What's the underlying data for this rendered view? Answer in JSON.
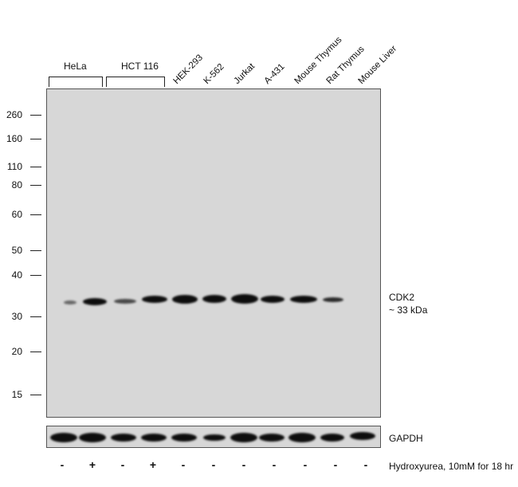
{
  "groups": [
    {
      "label": "HeLa"
    },
    {
      "label": "HCT 116"
    }
  ],
  "lanes": [
    {
      "label": "HEK-293"
    },
    {
      "label": "K-562"
    },
    {
      "label": "Jurkat"
    },
    {
      "label": "A-431"
    },
    {
      "label": "Mouse Thymus"
    },
    {
      "label": "Rat Thymus"
    },
    {
      "label": "Mouse Liver"
    }
  ],
  "mw_markers": [
    "260",
    "160",
    "110",
    "80",
    "60",
    "50",
    "40",
    "30",
    "20",
    "15"
  ],
  "target": {
    "name": "CDK2",
    "size": "~ 33 kDa"
  },
  "loading_control": "GAPDH",
  "treatment": {
    "label": "Hydroxyurea, 10mM for 18 hr",
    "signs": [
      "-",
      "+",
      "-",
      "+",
      "-",
      "-",
      "-",
      "-",
      "-",
      "-",
      "-"
    ]
  },
  "colors": {
    "membrane": "#d7d7d7",
    "band": "#0d0d0d"
  }
}
